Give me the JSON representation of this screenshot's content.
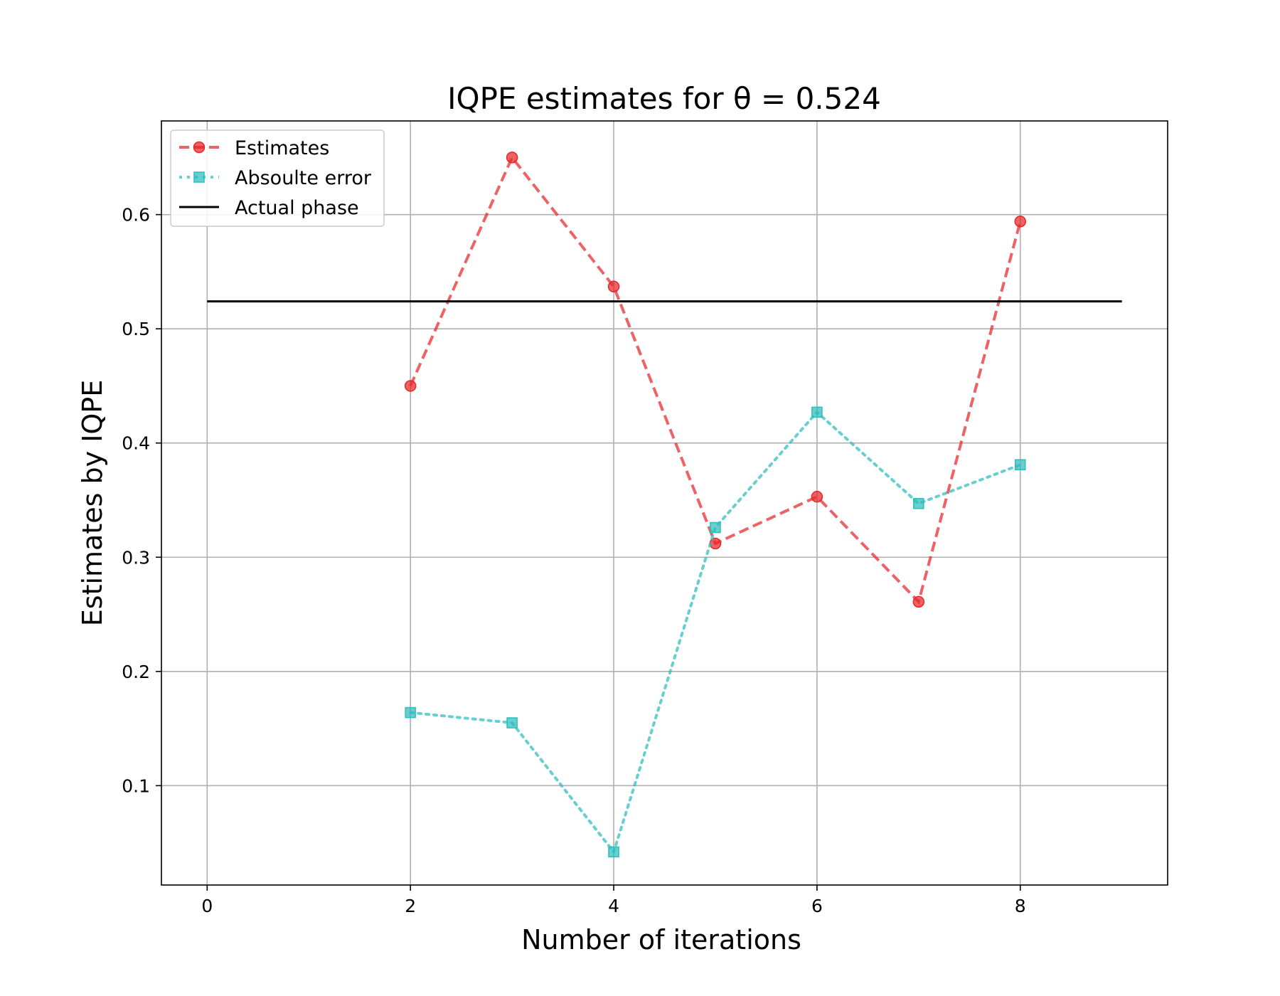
{
  "chart_data": {
    "type": "line",
    "title": "IQPE estimates for θ = 0.524",
    "xlabel": "Number of iterations",
    "ylabel": "Estimates by IQPE",
    "xlim": [
      -0.45,
      9.45
    ],
    "ylim": [
      0.013,
      0.682
    ],
    "xticks": [
      0,
      2,
      4,
      6,
      8
    ],
    "yticks": [
      0.1,
      0.2,
      0.3,
      0.4,
      0.5,
      0.6
    ],
    "ytick_labels": [
      "0.1",
      "0.2",
      "0.3",
      "0.4",
      "0.5",
      "0.6"
    ],
    "grid": true,
    "legend_position": "upper left",
    "series": [
      {
        "name": "Estimates",
        "x": [
          2,
          3,
          4,
          5,
          6,
          7,
          8
        ],
        "y": [
          0.45,
          0.65,
          0.537,
          0.312,
          0.353,
          0.261,
          0.594
        ],
        "color": "#e8262a",
        "line_style": "dashed",
        "marker": "circle"
      },
      {
        "name": "Absoulte error",
        "x": [
          2,
          3,
          4,
          5,
          6,
          7,
          8
        ],
        "y": [
          0.164,
          0.155,
          0.042,
          0.326,
          0.427,
          0.347,
          0.381
        ],
        "color": "#2cbdbd",
        "line_style": "dotted",
        "marker": "square"
      },
      {
        "name": "Actual phase",
        "x": [
          0,
          9
        ],
        "y": [
          0.524,
          0.524
        ],
        "color": "#000000",
        "line_style": "solid",
        "marker": "none"
      }
    ]
  }
}
